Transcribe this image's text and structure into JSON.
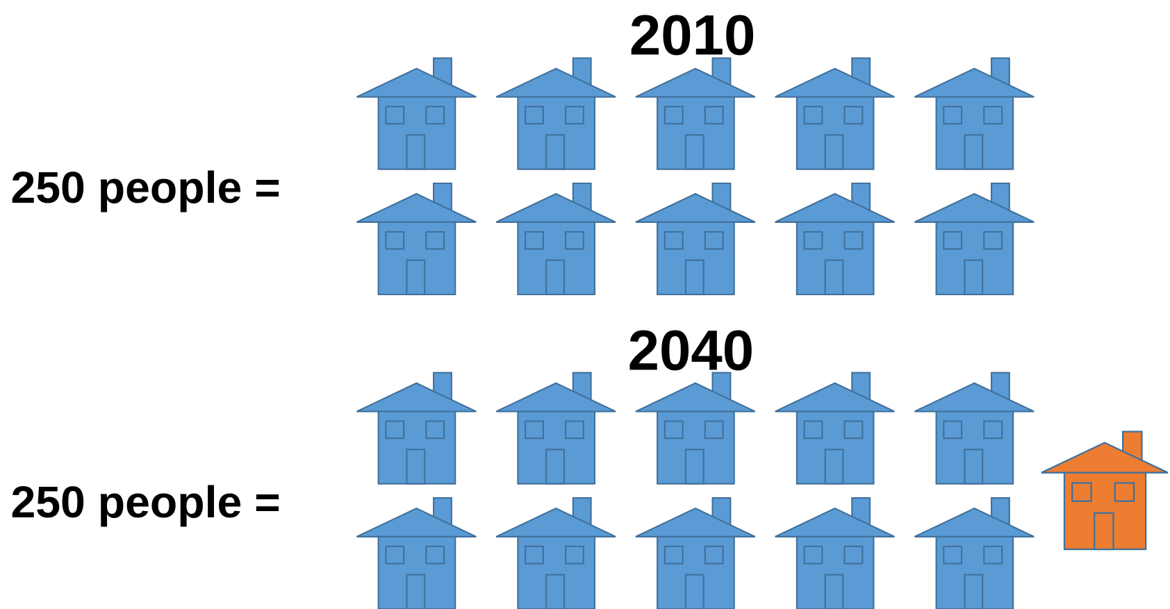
{
  "sections": [
    {
      "year": "2010",
      "label": "250 people ="
    },
    {
      "year": "2040",
      "label": "250 people ="
    }
  ]
}
